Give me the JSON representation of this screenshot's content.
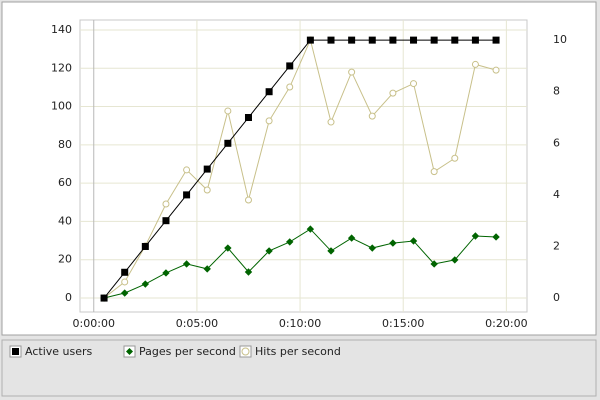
{
  "chart_data": {
    "type": "line",
    "x": [
      30,
      90,
      150,
      210,
      270,
      330,
      390,
      450,
      510,
      570,
      630,
      690,
      750,
      810,
      870,
      930,
      990,
      1050,
      1110,
      1170
    ],
    "xlim": [
      -40,
      1260
    ],
    "xticks": [
      {
        "value": 0,
        "label": "0:00:00"
      },
      {
        "value": 300,
        "label": "0:05:00"
      },
      {
        "value": 600,
        "label": "0:10:00"
      },
      {
        "value": 900,
        "label": "0:15:00"
      },
      {
        "value": 1200,
        "label": "0:20:00"
      }
    ],
    "ylim": [
      -7.3,
      145.2
    ],
    "yticks": [
      0,
      20,
      40,
      60,
      80,
      100,
      120,
      140
    ],
    "y2lim": [
      -0.54,
      10.78
    ],
    "y2ticks": [
      0,
      2,
      4,
      6,
      8,
      10
    ],
    "grid": true,
    "series": [
      {
        "name": "Active users",
        "color": "#000000",
        "marker": "square",
        "axis": "y2",
        "values": [
          0,
          1,
          2,
          3,
          4,
          5,
          6,
          7,
          8,
          9,
          10,
          10,
          10,
          10,
          10,
          10,
          10,
          10,
          10,
          10
        ]
      },
      {
        "name": "Pages per second",
        "color": "#006400",
        "marker": "diamond",
        "values": [
          0,
          2.6,
          7.3,
          13.1,
          17.8,
          15.2,
          26.1,
          13.6,
          24.6,
          29.3,
          36,
          24.6,
          31.3,
          26.1,
          28.7,
          29.8,
          17.8,
          19.9,
          32.4,
          31.9
        ]
      },
      {
        "name": "Hits per second",
        "color": "#c8c08a",
        "marker": "circle",
        "values": [
          0,
          8.4,
          27.2,
          49.1,
          66.9,
          56.4,
          97.7,
          51.2,
          92.5,
          110.2,
          134.8,
          91.9,
          118,
          95,
          107,
          112,
          66,
          73,
          122,
          119
        ]
      }
    ]
  }
}
